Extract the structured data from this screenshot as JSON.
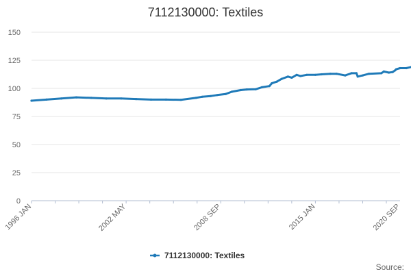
{
  "chart_data": {
    "type": "line",
    "title": "7112130000: Textiles",
    "xlabel": "",
    "ylabel": "",
    "ylim": [
      0,
      150
    ],
    "yticks": [
      0,
      25,
      50,
      75,
      100,
      125,
      150
    ],
    "xlim": [
      "1996-01",
      "2020-09"
    ],
    "xticks": [
      {
        "date": "1996-01",
        "label": "1996 JAN"
      },
      {
        "date": "2002-05",
        "label": "2002 MAY"
      },
      {
        "date": "2008-09",
        "label": "2008 SEP"
      },
      {
        "date": "2015-01",
        "label": "2015 JAN"
      },
      {
        "date": "2020-09",
        "label": "2020 SEP"
      }
    ],
    "grid": "horizontal",
    "legend_position": "bottom",
    "source_label": "Source:",
    "color": "#1f7ab8",
    "series": [
      {
        "name": "7112130000: Textiles",
        "points": [
          [
            "1996-01",
            89
          ],
          [
            "1997-01",
            90
          ],
          [
            "1998-01",
            91
          ],
          [
            "1999-01",
            92
          ],
          [
            "2000-01",
            91.5
          ],
          [
            "2001-01",
            91
          ],
          [
            "2002-01",
            91
          ],
          [
            "2003-01",
            90.5
          ],
          [
            "2004-01",
            90
          ],
          [
            "2005-01",
            90
          ],
          [
            "2006-01",
            89.8
          ],
          [
            "2007-01",
            91.5
          ],
          [
            "2007-06",
            92.5
          ],
          [
            "2008-01",
            93.2
          ],
          [
            "2008-06",
            94
          ],
          [
            "2009-01",
            95
          ],
          [
            "2009-06",
            97
          ],
          [
            "2010-01",
            98.5
          ],
          [
            "2010-06",
            99
          ],
          [
            "2011-01",
            99.2
          ],
          [
            "2011-06",
            101
          ],
          [
            "2011-12",
            102
          ],
          [
            "2012-02",
            104.5
          ],
          [
            "2012-06",
            106
          ],
          [
            "2012-10",
            108.5
          ],
          [
            "2013-03",
            110.5
          ],
          [
            "2013-06",
            109.5
          ],
          [
            "2013-10",
            112
          ],
          [
            "2014-01",
            111
          ],
          [
            "2014-06",
            112
          ],
          [
            "2015-01",
            112
          ],
          [
            "2015-06",
            112.5
          ],
          [
            "2016-01",
            113
          ],
          [
            "2016-06",
            113
          ],
          [
            "2017-01",
            111.5
          ],
          [
            "2017-06",
            113.5
          ],
          [
            "2017-10",
            113.5
          ],
          [
            "2017-11",
            110.5
          ],
          [
            "2018-03",
            111.5
          ],
          [
            "2018-08",
            113
          ],
          [
            "2019-06",
            113.5
          ],
          [
            "2019-08",
            115
          ],
          [
            "2019-12",
            114
          ],
          [
            "2020-03",
            114.5
          ],
          [
            "2020-05",
            116
          ],
          [
            "2020-06",
            117
          ],
          [
            "2020-09",
            118
          ],
          [
            "2021-02",
            118
          ],
          [
            "2021-06",
            119
          ],
          [
            "2021-08",
            120
          ]
        ]
      }
    ]
  }
}
